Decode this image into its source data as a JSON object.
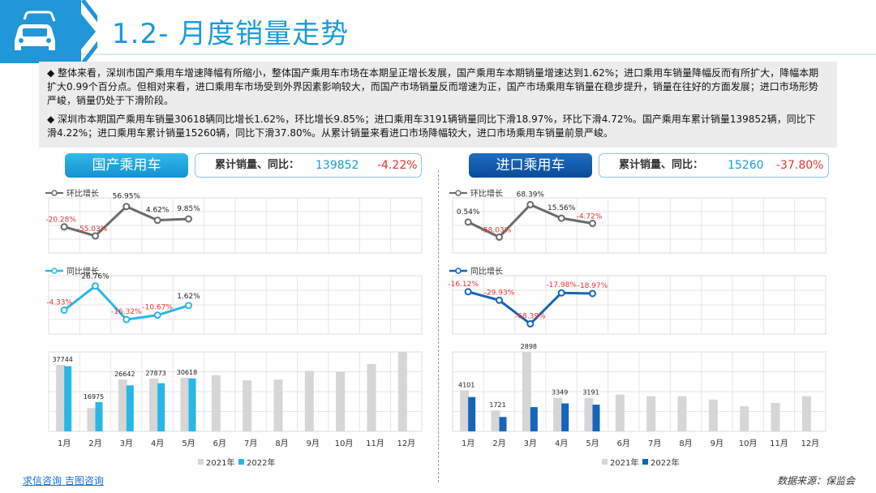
{
  "header": {
    "title": "1.2- 月度销量走势",
    "icon": "car-icon"
  },
  "summary": {
    "p1": "◆ 整体来看，深圳市国产乘用车增速降幅有所缩小，整体国产乘用车市场在本期呈正增长发展，国产乘用车本期销量增速达到1.62%；进口乘用车销量降幅反而有所扩大，降幅本期扩大0.99个百分点。但相对来看，进口乘用车市场受到外界因素影响较大，而国产市场销量反而增速为正，国产市场乘用车销量在稳步提升，销量在往好的方面发展；进口市场形势严峻，销量仍处于下滑阶段。",
    "p2": "◆ 深圳市本期国产乘用车销量30618辆同比增长1.62%，环比增长9.85%；进口乘用车3191辆销量同比下滑18.97%，环比下滑4.72%。国产乘用车累计销量139852辆，同比下滑4.22%；进口乘用车累计销量15260辆，同比下滑37.80%。从累计销量来看进口市场降幅较大，进口市场乘用车销量前景严峻。"
  },
  "domestic": {
    "label": "国产乘用车",
    "cum_label": "累计销量、同比：",
    "cum_value": "139852",
    "cum_yoy": "-4.22%"
  },
  "imported": {
    "label": "进口乘用车",
    "cum_label": "累计销量、同比：",
    "cum_value": "15260",
    "cum_yoy": "-37.80%"
  },
  "footer": {
    "link1": "求信咨询",
    "link2": "吉图咨询",
    "source": "数据来源：保监会"
  },
  "colors": {
    "accent": "#1a9bd8",
    "mom": "#6b6b6b",
    "dom_yoy": "#29b6e8",
    "imp_yoy": "#1565b8",
    "neg": "#e6322e",
    "bar2021": "#d6d6d6",
    "dom2022": "#29b6e8",
    "imp2022": "#1565b8"
  },
  "chart_data": [
    {
      "type": "line",
      "panel": "domestic",
      "name": "环比增长",
      "categories": [
        "1月",
        "2月",
        "3月",
        "4月",
        "5月"
      ],
      "values": [
        -20.28,
        -55.03,
        56.95,
        4.62,
        9.85
      ],
      "labels": [
        "-20.28%",
        "-55.03%",
        "56.95%",
        "4.62%",
        "9.85%"
      ]
    },
    {
      "type": "line",
      "panel": "domestic",
      "name": "同比增长",
      "categories": [
        "1月",
        "2月",
        "3月",
        "4月",
        "5月"
      ],
      "values": [
        -4.33,
        26.76,
        -16.32,
        -10.67,
        1.62
      ],
      "labels": [
        "-4.33%",
        "26.76%",
        "-16.32%",
        "-10.67%",
        "1.62%"
      ]
    },
    {
      "type": "bar",
      "panel": "domestic",
      "categories": [
        "1月",
        "2月",
        "3月",
        "4月",
        "5月",
        "6月",
        "7月",
        "8月",
        "9月",
        "10月",
        "11月",
        "12月"
      ],
      "series": [
        {
          "name": "2021年",
          "values": [
            38500,
            13500,
            30000,
            30600,
            31000,
            32500,
            29500,
            30000,
            35000,
            34500,
            39000,
            46000
          ]
        },
        {
          "name": "2022年",
          "values": [
            37744,
            16975,
            26642,
            27873,
            30618
          ]
        }
      ],
      "labels": [
        "37744",
        "16975",
        "26642",
        "27873",
        "30618"
      ]
    },
    {
      "type": "line",
      "panel": "imported",
      "name": "环比增长",
      "categories": [
        "1月",
        "2月",
        "3月",
        "4月",
        "5月"
      ],
      "values": [
        0.54,
        -58.03,
        68.39,
        15.56,
        -4.72
      ],
      "labels": [
        "0.54%",
        "-58.03%",
        "68.39%",
        "15.56%",
        "-4.72%"
      ]
    },
    {
      "type": "line",
      "panel": "imported",
      "name": "同比增长",
      "categories": [
        "1月",
        "2月",
        "3月",
        "4月",
        "5月"
      ],
      "values": [
        -16.12,
        -29.93,
        -68.39,
        -17.98,
        -18.97
      ],
      "labels": [
        "-16.12%",
        "-29.93%",
        "-68.39%",
        "-17.98%",
        "-18.97%"
      ]
    },
    {
      "type": "bar",
      "panel": "imported",
      "categories": [
        "1月",
        "2月",
        "3月",
        "4月",
        "5月",
        "6月",
        "7月",
        "8月",
        "9月",
        "10月",
        "11月",
        "12月"
      ],
      "series": [
        {
          "name": "2021年",
          "values": [
            4900,
            2500,
            9500,
            4000,
            4000,
            4400,
            4200,
            4200,
            3800,
            3000,
            3400,
            4200
          ]
        },
        {
          "name": "2022年",
          "values": [
            4101,
            1721,
            2898,
            3349,
            3191
          ]
        }
      ],
      "labels": [
        "4101",
        "1721",
        "2898",
        "3349",
        "3191"
      ]
    }
  ]
}
